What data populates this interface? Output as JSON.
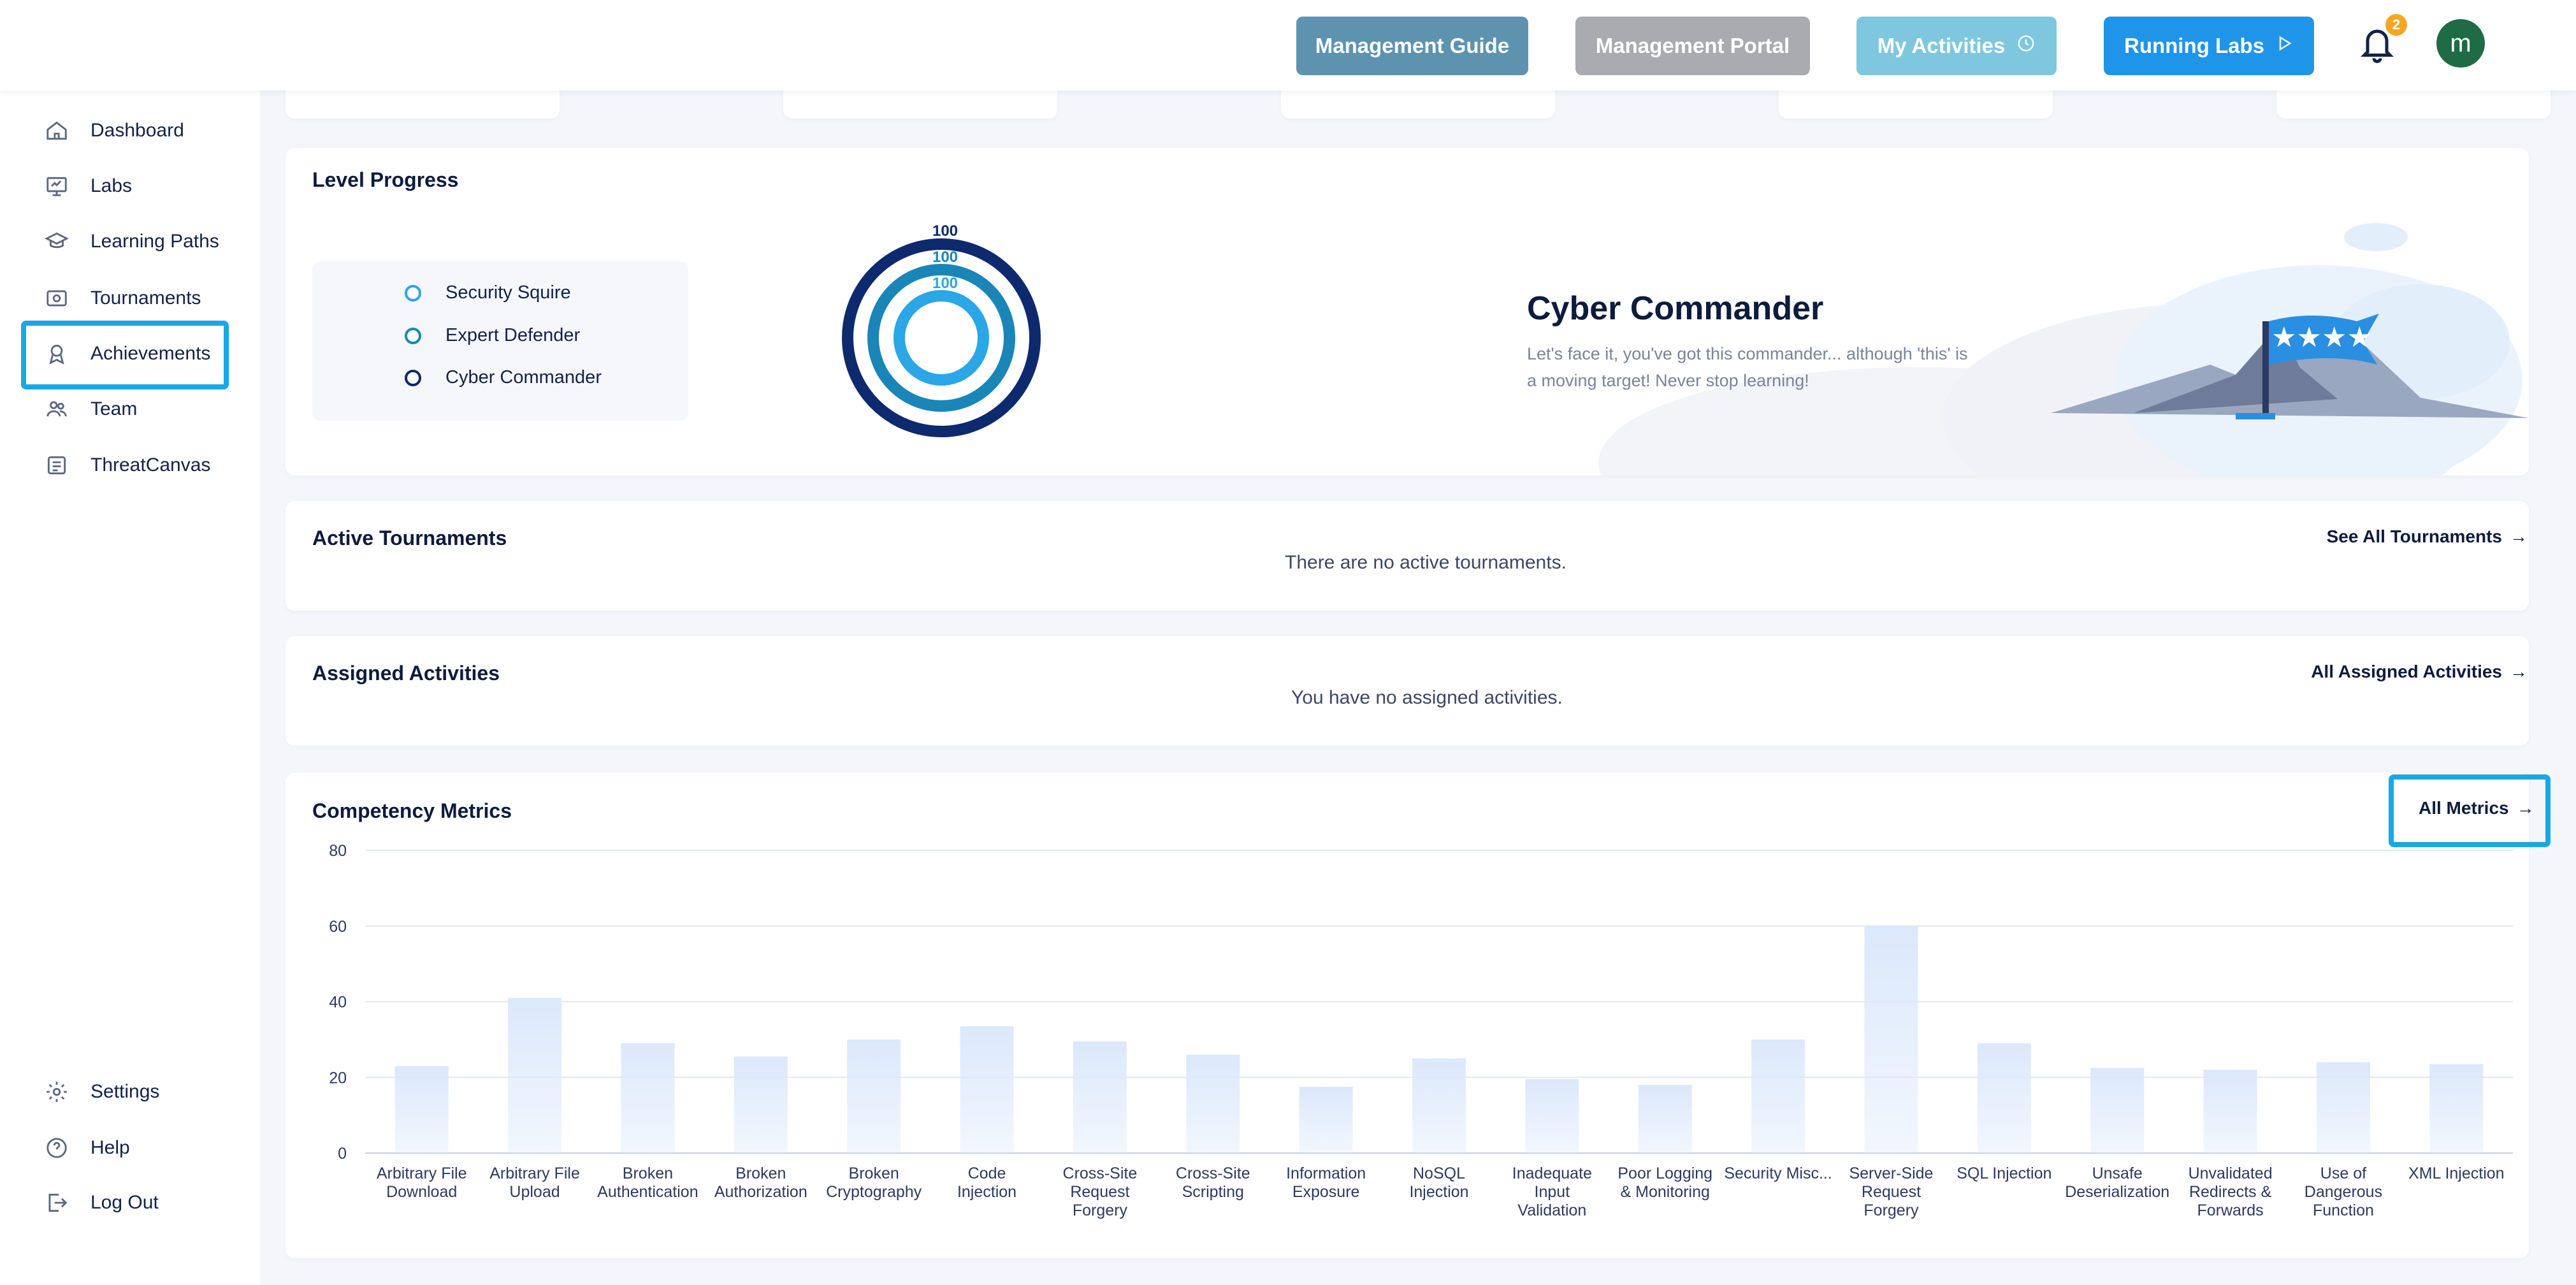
{
  "topbar": {
    "buttons": [
      {
        "label": "Management Guide",
        "color": "#5e93b0"
      },
      {
        "label": "Management Portal",
        "color": "#a9abb0"
      },
      {
        "label": "My Activities",
        "color": "#7fc7de",
        "icon": "clock-icon"
      },
      {
        "label": "Running Labs",
        "color": "#1f95ea",
        "icon": "play-icon"
      }
    ],
    "notification_count": "2",
    "avatar_initial": "m"
  },
  "sidebar": {
    "items": [
      {
        "label": "Dashboard",
        "icon": "home-icon"
      },
      {
        "label": "Labs",
        "icon": "monitor-icon"
      },
      {
        "label": "Learning Paths",
        "icon": "graduation-cap-icon"
      },
      {
        "label": "Tournaments",
        "icon": "tournament-icon"
      },
      {
        "label": "Achievements",
        "icon": "award-icon",
        "highlighted": true
      },
      {
        "label": "Team",
        "icon": "team-icon"
      },
      {
        "label": "ThreatCanvas",
        "icon": "canvas-icon"
      }
    ],
    "bottom_items": [
      {
        "label": "Settings",
        "icon": "gear-icon"
      },
      {
        "label": "Help",
        "icon": "help-icon"
      },
      {
        "label": "Log Out",
        "icon": "logout-icon"
      }
    ]
  },
  "level_progress": {
    "title": "Level Progress",
    "levels": [
      {
        "name": "Security Squire",
        "color": "#2ba6e6",
        "progress": "100"
      },
      {
        "name": "Expert Defender",
        "color": "#1a86b8",
        "progress": "100"
      },
      {
        "name": "Cyber Commander",
        "color": "#0d2a6e",
        "progress": "100"
      }
    ],
    "current_level": "Cyber Commander",
    "description": "Let's face it, you've got this commander... although 'this' is a moving target! Never stop learning!"
  },
  "active_tournaments": {
    "title": "Active Tournaments",
    "message": "There are no active tournaments.",
    "link": "See All Tournaments"
  },
  "assigned_activities": {
    "title": "Assigned Activities",
    "message": "You have no assigned activities.",
    "link": "All Assigned Activities"
  },
  "competency_metrics": {
    "title": "Competency Metrics",
    "link": "All Metrics"
  },
  "chart_data": {
    "type": "bar",
    "categories": [
      [
        "Arbitrary File",
        "Download"
      ],
      [
        "Arbitrary File",
        "Upload"
      ],
      [
        "Broken",
        "Authentication"
      ],
      [
        "Broken",
        "Authorization"
      ],
      [
        "Broken",
        "Cryptography"
      ],
      [
        "Code",
        "Injection"
      ],
      [
        "Cross-Site",
        "Request",
        "Forgery"
      ],
      [
        "Cross-Site",
        "Scripting"
      ],
      [
        "Information",
        "Exposure"
      ],
      [
        "NoSQL",
        "Injection"
      ],
      [
        "Inadequate",
        "Input",
        "Validation"
      ],
      [
        "Poor Logging",
        "& Monitoring"
      ],
      [
        "Security Misc..."
      ],
      [
        "Server-Side",
        "Request",
        "Forgery"
      ],
      [
        "SQL Injection"
      ],
      [
        "Unsafe",
        "Deserialization"
      ],
      [
        "Unvalidated",
        "Redirects &",
        "Forwards"
      ],
      [
        "Use of",
        "Dangerous",
        "Function"
      ],
      [
        "XML Injection"
      ]
    ],
    "values": [
      23,
      41,
      29,
      25.5,
      30,
      33.5,
      29.5,
      26,
      17.5,
      25,
      19.5,
      18,
      30,
      60,
      29,
      22.5,
      22,
      24,
      23.5
    ],
    "yticks": [
      "0",
      "20",
      "40",
      "60",
      "80"
    ],
    "ylim": [
      0,
      80
    ],
    "grid": true,
    "bar_color": "#dbe8fb"
  }
}
